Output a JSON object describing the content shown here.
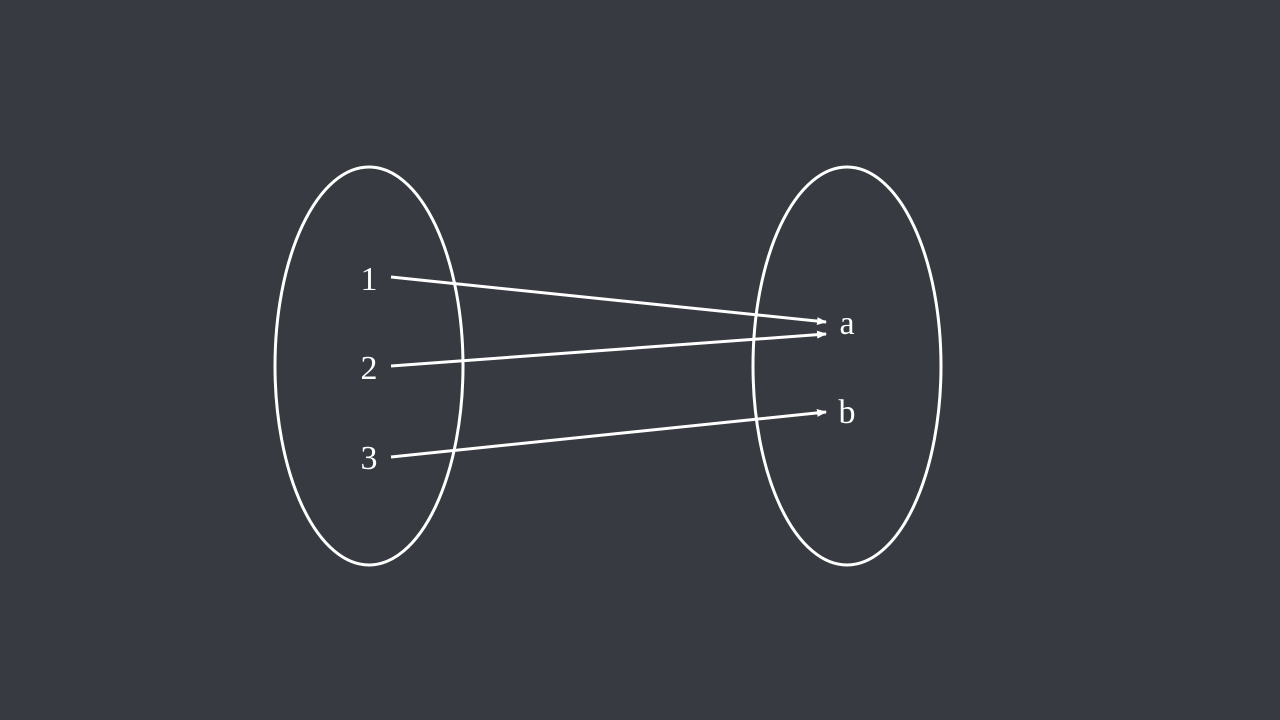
{
  "diagram": {
    "type": "set-mapping",
    "colors": {
      "background": "#373a41",
      "stroke": "#ffffff",
      "text": "#ffffff"
    },
    "domain": {
      "elements": [
        "1",
        "2",
        "3"
      ]
    },
    "codomain": {
      "elements": [
        "a",
        "b"
      ]
    },
    "mappings": [
      {
        "from": "1",
        "to": "a"
      },
      {
        "from": "2",
        "to": "a"
      },
      {
        "from": "3",
        "to": "b"
      }
    ]
  }
}
